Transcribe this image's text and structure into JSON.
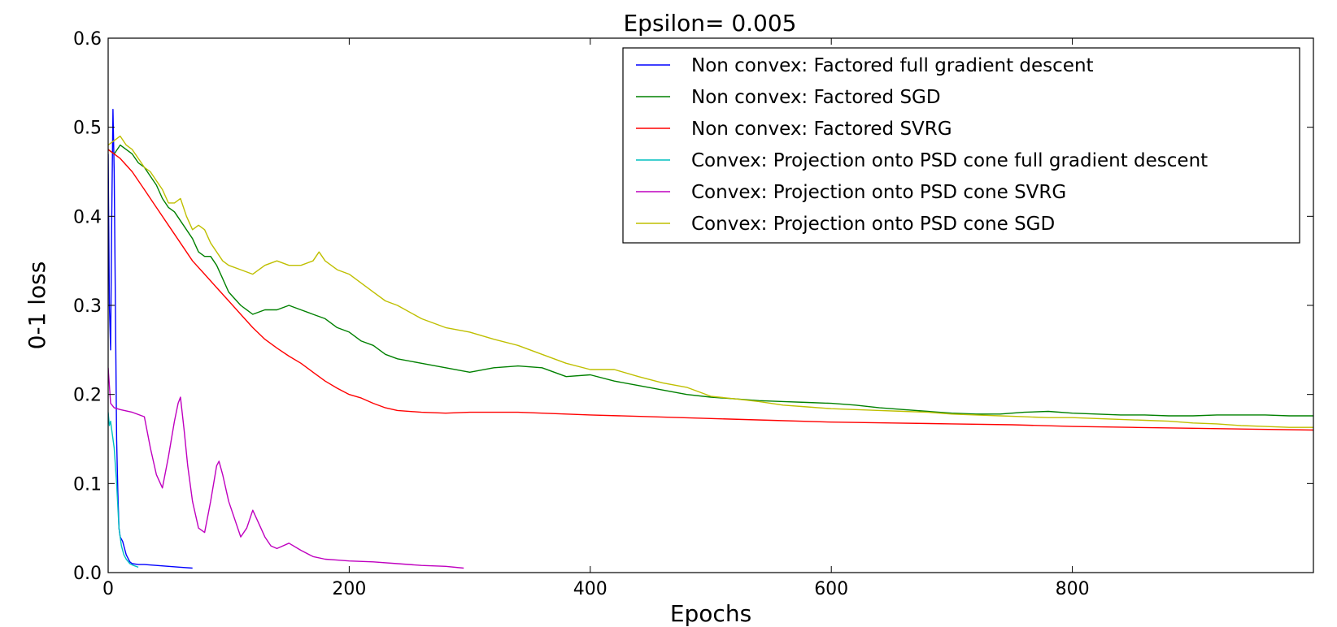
{
  "chart_data": {
    "type": "line",
    "title": "Epsilon= 0.005",
    "xlabel": "Epochs",
    "ylabel": "0-1 loss",
    "xlim": [
      0,
      1000
    ],
    "ylim": [
      0,
      0.6
    ],
    "xticks": [
      0,
      200,
      400,
      600,
      800
    ],
    "xtick_labels": [
      "0",
      "200",
      "400",
      "600",
      "800"
    ],
    "yticks": [
      0,
      0.1,
      0.2,
      0.3,
      0.4,
      0.5,
      0.6
    ],
    "ytick_labels": [
      "0.0",
      "0.1",
      "0.2",
      "0.3",
      "0.4",
      "0.5",
      "0.6"
    ],
    "grid": false,
    "legend_position": "top-right",
    "series": [
      {
        "name": "Non convex: Factored full gradient descent",
        "color": "#0000ff",
        "points": [
          [
            0,
            0.47
          ],
          [
            1,
            0.3
          ],
          [
            2,
            0.25
          ],
          [
            3,
            0.4
          ],
          [
            4,
            0.52
          ],
          [
            5,
            0.45
          ],
          [
            6,
            0.3
          ],
          [
            7,
            0.15
          ],
          [
            8,
            0.09
          ],
          [
            9,
            0.05
          ],
          [
            10,
            0.04
          ],
          [
            12,
            0.035
          ],
          [
            15,
            0.02
          ],
          [
            18,
            0.012
          ],
          [
            20,
            0.01
          ],
          [
            25,
            0.009
          ],
          [
            30,
            0.009
          ],
          [
            40,
            0.008
          ],
          [
            50,
            0.007
          ],
          [
            60,
            0.006
          ],
          [
            70,
            0.005
          ]
        ]
      },
      {
        "name": "Non convex: Factored SGD",
        "color": "#008000",
        "points": [
          [
            0,
            0.475
          ],
          [
            5,
            0.47
          ],
          [
            10,
            0.48
          ],
          [
            15,
            0.475
          ],
          [
            20,
            0.47
          ],
          [
            25,
            0.46
          ],
          [
            30,
            0.455
          ],
          [
            35,
            0.445
          ],
          [
            40,
            0.435
          ],
          [
            45,
            0.42
          ],
          [
            50,
            0.41
          ],
          [
            55,
            0.405
          ],
          [
            60,
            0.395
          ],
          [
            65,
            0.385
          ],
          [
            70,
            0.375
          ],
          [
            75,
            0.36
          ],
          [
            80,
            0.355
          ],
          [
            85,
            0.355
          ],
          [
            90,
            0.345
          ],
          [
            95,
            0.33
          ],
          [
            100,
            0.315
          ],
          [
            110,
            0.3
          ],
          [
            120,
            0.29
          ],
          [
            130,
            0.295
          ],
          [
            140,
            0.295
          ],
          [
            150,
            0.3
          ],
          [
            160,
            0.295
          ],
          [
            170,
            0.29
          ],
          [
            180,
            0.285
          ],
          [
            190,
            0.275
          ],
          [
            200,
            0.27
          ],
          [
            210,
            0.26
          ],
          [
            220,
            0.255
          ],
          [
            230,
            0.245
          ],
          [
            240,
            0.24
          ],
          [
            260,
            0.235
          ],
          [
            280,
            0.23
          ],
          [
            300,
            0.225
          ],
          [
            320,
            0.23
          ],
          [
            340,
            0.232
          ],
          [
            360,
            0.23
          ],
          [
            380,
            0.22
          ],
          [
            400,
            0.222
          ],
          [
            420,
            0.215
          ],
          [
            440,
            0.21
          ],
          [
            460,
            0.205
          ],
          [
            480,
            0.2
          ],
          [
            500,
            0.197
          ],
          [
            520,
            0.195
          ],
          [
            540,
            0.193
          ],
          [
            560,
            0.192
          ],
          [
            580,
            0.191
          ],
          [
            600,
            0.19
          ],
          [
            620,
            0.188
          ],
          [
            640,
            0.185
          ],
          [
            660,
            0.183
          ],
          [
            680,
            0.181
          ],
          [
            700,
            0.179
          ],
          [
            720,
            0.178
          ],
          [
            740,
            0.178
          ],
          [
            760,
            0.18
          ],
          [
            780,
            0.181
          ],
          [
            800,
            0.179
          ],
          [
            820,
            0.178
          ],
          [
            840,
            0.177
          ],
          [
            860,
            0.177
          ],
          [
            880,
            0.176
          ],
          [
            900,
            0.176
          ],
          [
            920,
            0.177
          ],
          [
            940,
            0.177
          ],
          [
            960,
            0.177
          ],
          [
            980,
            0.176
          ],
          [
            1000,
            0.176
          ]
        ]
      },
      {
        "name": "Non convex: Factored SVRG",
        "color": "#ff0000",
        "points": [
          [
            0,
            0.475
          ],
          [
            10,
            0.465
          ],
          [
            20,
            0.45
          ],
          [
            30,
            0.43
          ],
          [
            40,
            0.41
          ],
          [
            50,
            0.39
          ],
          [
            60,
            0.37
          ],
          [
            70,
            0.35
          ],
          [
            80,
            0.335
          ],
          [
            90,
            0.32
          ],
          [
            100,
            0.305
          ],
          [
            110,
            0.29
          ],
          [
            120,
            0.275
          ],
          [
            130,
            0.262
          ],
          [
            140,
            0.252
          ],
          [
            150,
            0.243
          ],
          [
            160,
            0.235
          ],
          [
            170,
            0.225
          ],
          [
            180,
            0.215
          ],
          [
            190,
            0.207
          ],
          [
            200,
            0.2
          ],
          [
            210,
            0.196
          ],
          [
            220,
            0.19
          ],
          [
            230,
            0.185
          ],
          [
            240,
            0.182
          ],
          [
            260,
            0.18
          ],
          [
            280,
            0.179
          ],
          [
            300,
            0.18
          ],
          [
            320,
            0.18
          ],
          [
            340,
            0.18
          ],
          [
            360,
            0.179
          ],
          [
            380,
            0.178
          ],
          [
            400,
            0.177
          ],
          [
            450,
            0.175
          ],
          [
            500,
            0.173
          ],
          [
            550,
            0.171
          ],
          [
            600,
            0.169
          ],
          [
            650,
            0.168
          ],
          [
            700,
            0.167
          ],
          [
            750,
            0.166
          ],
          [
            800,
            0.164
          ],
          [
            850,
            0.163
          ],
          [
            900,
            0.162
          ],
          [
            950,
            0.161
          ],
          [
            1000,
            0.16
          ]
        ]
      },
      {
        "name": "Convex: Projection onto PSD cone full gradient descent",
        "color": "#00bfbf",
        "points": [
          [
            0,
            0.18
          ],
          [
            1,
            0.165
          ],
          [
            2,
            0.17
          ],
          [
            3,
            0.16
          ],
          [
            5,
            0.14
          ],
          [
            7,
            0.1
          ],
          [
            9,
            0.05
          ],
          [
            11,
            0.03
          ],
          [
            13,
            0.02
          ],
          [
            15,
            0.015
          ],
          [
            18,
            0.01
          ],
          [
            21,
            0.008
          ],
          [
            25,
            0.006
          ]
        ]
      },
      {
        "name": "Convex: Projection onto PSD cone SVRG",
        "color": "#bf00bf",
        "points": [
          [
            0,
            0.23
          ],
          [
            2,
            0.19
          ],
          [
            5,
            0.185
          ],
          [
            10,
            0.183
          ],
          [
            20,
            0.18
          ],
          [
            30,
            0.175
          ],
          [
            35,
            0.14
          ],
          [
            40,
            0.11
          ],
          [
            45,
            0.095
          ],
          [
            50,
            0.13
          ],
          [
            55,
            0.17
          ],
          [
            58,
            0.19
          ],
          [
            60,
            0.197
          ],
          [
            63,
            0.16
          ],
          [
            66,
            0.12
          ],
          [
            70,
            0.08
          ],
          [
            75,
            0.05
          ],
          [
            80,
            0.045
          ],
          [
            85,
            0.08
          ],
          [
            90,
            0.12
          ],
          [
            92,
            0.125
          ],
          [
            95,
            0.11
          ],
          [
            100,
            0.08
          ],
          [
            105,
            0.06
          ],
          [
            110,
            0.04
          ],
          [
            115,
            0.05
          ],
          [
            120,
            0.07
          ],
          [
            125,
            0.055
          ],
          [
            130,
            0.04
          ],
          [
            135,
            0.03
          ],
          [
            140,
            0.027
          ],
          [
            145,
            0.03
          ],
          [
            150,
            0.033
          ],
          [
            160,
            0.025
          ],
          [
            170,
            0.018
          ],
          [
            180,
            0.015
          ],
          [
            190,
            0.014
          ],
          [
            200,
            0.013
          ],
          [
            220,
            0.012
          ],
          [
            240,
            0.01
          ],
          [
            260,
            0.008
          ],
          [
            280,
            0.007
          ],
          [
            295,
            0.005
          ]
        ]
      },
      {
        "name": "Convex: Projection onto PSD cone SGD",
        "color": "#bfbf00",
        "points": [
          [
            0,
            0.48
          ],
          [
            5,
            0.485
          ],
          [
            10,
            0.49
          ],
          [
            15,
            0.48
          ],
          [
            20,
            0.475
          ],
          [
            25,
            0.465
          ],
          [
            30,
            0.455
          ],
          [
            35,
            0.45
          ],
          [
            40,
            0.44
          ],
          [
            45,
            0.43
          ],
          [
            50,
            0.415
          ],
          [
            55,
            0.415
          ],
          [
            60,
            0.42
          ],
          [
            65,
            0.4
          ],
          [
            70,
            0.385
          ],
          [
            75,
            0.39
          ],
          [
            80,
            0.385
          ],
          [
            85,
            0.37
          ],
          [
            90,
            0.36
          ],
          [
            95,
            0.35
          ],
          [
            100,
            0.345
          ],
          [
            110,
            0.34
          ],
          [
            120,
            0.335
          ],
          [
            130,
            0.345
          ],
          [
            140,
            0.35
          ],
          [
            150,
            0.345
          ],
          [
            160,
            0.345
          ],
          [
            170,
            0.35
          ],
          [
            175,
            0.36
          ],
          [
            180,
            0.35
          ],
          [
            190,
            0.34
          ],
          [
            200,
            0.335
          ],
          [
            210,
            0.325
          ],
          [
            220,
            0.315
          ],
          [
            230,
            0.305
          ],
          [
            240,
            0.3
          ],
          [
            260,
            0.285
          ],
          [
            280,
            0.275
          ],
          [
            300,
            0.27
          ],
          [
            320,
            0.262
          ],
          [
            340,
            0.255
          ],
          [
            360,
            0.245
          ],
          [
            380,
            0.235
          ],
          [
            400,
            0.228
          ],
          [
            420,
            0.228
          ],
          [
            440,
            0.22
          ],
          [
            460,
            0.213
          ],
          [
            480,
            0.208
          ],
          [
            500,
            0.198
          ],
          [
            520,
            0.195
          ],
          [
            540,
            0.192
          ],
          [
            560,
            0.188
          ],
          [
            580,
            0.186
          ],
          [
            600,
            0.184
          ],
          [
            620,
            0.183
          ],
          [
            640,
            0.182
          ],
          [
            660,
            0.181
          ],
          [
            680,
            0.18
          ],
          [
            700,
            0.178
          ],
          [
            720,
            0.177
          ],
          [
            740,
            0.176
          ],
          [
            760,
            0.175
          ],
          [
            780,
            0.174
          ],
          [
            800,
            0.174
          ],
          [
            820,
            0.173
          ],
          [
            840,
            0.172
          ],
          [
            860,
            0.171
          ],
          [
            880,
            0.17
          ],
          [
            900,
            0.168
          ],
          [
            920,
            0.167
          ],
          [
            940,
            0.165
          ],
          [
            960,
            0.164
          ],
          [
            980,
            0.163
          ],
          [
            1000,
            0.163
          ]
        ]
      }
    ]
  }
}
